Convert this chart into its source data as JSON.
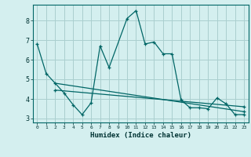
{
  "title": "",
  "xlabel": "Humidex (Indice chaleur)",
  "bg_color": "#d4efef",
  "grid_color": "#aacfcf",
  "line_color": "#006666",
  "xlim": [
    -0.5,
    23.5
  ],
  "ylim": [
    2.8,
    8.8
  ],
  "yticks": [
    3,
    4,
    5,
    6,
    7,
    8
  ],
  "xticks": [
    0,
    1,
    2,
    3,
    4,
    5,
    6,
    7,
    8,
    9,
    10,
    11,
    12,
    13,
    14,
    15,
    16,
    17,
    18,
    19,
    20,
    21,
    22,
    23
  ],
  "series1_x": [
    0,
    1,
    3,
    4,
    5,
    6,
    7,
    8,
    10,
    11,
    12,
    13,
    14,
    15,
    16,
    17,
    18,
    19,
    20,
    21,
    22,
    23
  ],
  "series1_y": [
    6.8,
    5.3,
    4.3,
    3.7,
    3.2,
    3.8,
    6.7,
    5.6,
    8.1,
    8.5,
    6.8,
    6.9,
    6.3,
    6.3,
    3.95,
    3.55,
    3.55,
    3.5,
    4.05,
    3.75,
    3.2,
    3.2
  ],
  "series2_x": [
    2,
    23
  ],
  "series2_y": [
    4.8,
    3.35
  ],
  "series3_x": [
    2,
    23
  ],
  "series3_y": [
    4.45,
    3.6
  ]
}
